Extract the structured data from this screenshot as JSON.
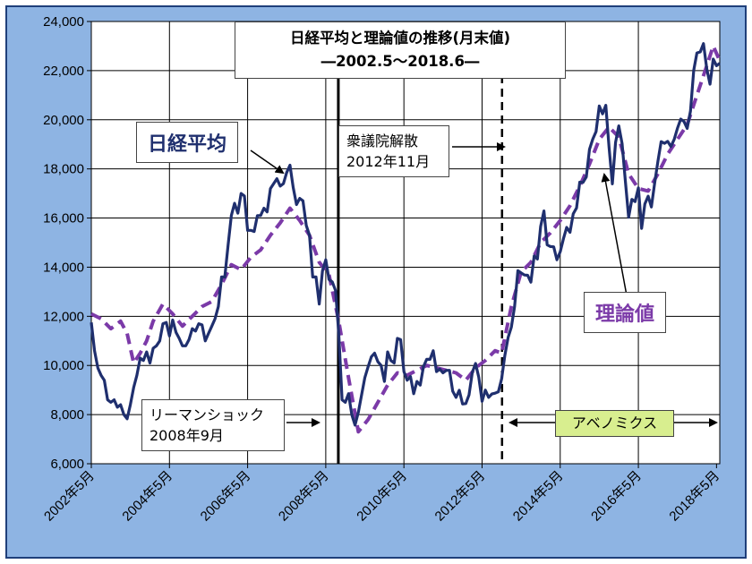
{
  "chart_data": {
    "type": "line",
    "title": "日経平均と理論値の推移(月末値)",
    "subtitle": "―2002.5～2018.6―",
    "ylim": [
      6000,
      24000
    ],
    "y_ticks": [
      "6,000",
      "8,000",
      "10,000",
      "12,000",
      "14,000",
      "16,000",
      "18,000",
      "20,000",
      "22,000",
      "24,000"
    ],
    "x_range": [
      "2002-05",
      "2018-06"
    ],
    "x_ticks": [
      "2002年5月",
      "2004年5月",
      "2006年5月",
      "2008年5月",
      "2010年5月",
      "2012年5月",
      "2014年5月",
      "2016年5月",
      "2018年5月"
    ],
    "grid": true,
    "series": [
      {
        "name": "日経平均",
        "color": "#1f2f6e",
        "style": "solid",
        "points": [
          [
            "2002-05",
            11750
          ],
          [
            "2002-06",
            10600
          ],
          [
            "2002-07",
            9900
          ],
          [
            "2002-08",
            9600
          ],
          [
            "2002-09",
            9400
          ],
          [
            "2002-10",
            8600
          ],
          [
            "2002-11",
            8500
          ],
          [
            "2002-12",
            8600
          ],
          [
            "2003-01",
            8300
          ],
          [
            "2003-02",
            8400
          ],
          [
            "2003-03",
            8000
          ],
          [
            "2003-04",
            7830
          ],
          [
            "2003-05",
            8400
          ],
          [
            "2003-06",
            9100
          ],
          [
            "2003-07",
            9600
          ],
          [
            "2003-08",
            10300
          ],
          [
            "2003-09",
            10200
          ],
          [
            "2003-10",
            10550
          ],
          [
            "2003-11",
            10100
          ],
          [
            "2003-12",
            10700
          ],
          [
            "2004-01",
            10800
          ],
          [
            "2004-02",
            11000
          ],
          [
            "2004-03",
            11700
          ],
          [
            "2004-04",
            11750
          ],
          [
            "2004-05",
            11200
          ],
          [
            "2004-06",
            11850
          ],
          [
            "2004-07",
            11350
          ],
          [
            "2004-08",
            11100
          ],
          [
            "2004-09",
            10800
          ],
          [
            "2004-10",
            10800
          ],
          [
            "2004-11",
            11050
          ],
          [
            "2004-12",
            11500
          ],
          [
            "2005-01",
            11400
          ],
          [
            "2005-02",
            11700
          ],
          [
            "2005-03",
            11650
          ],
          [
            "2005-04",
            11000
          ],
          [
            "2005-05",
            11300
          ],
          [
            "2005-06",
            11600
          ],
          [
            "2005-07",
            11900
          ],
          [
            "2005-08",
            12400
          ],
          [
            "2005-09",
            13600
          ],
          [
            "2005-10",
            13600
          ],
          [
            "2005-11",
            14900
          ],
          [
            "2005-12",
            16100
          ],
          [
            "2006-01",
            16600
          ],
          [
            "2006-02",
            16200
          ],
          [
            "2006-03",
            17000
          ],
          [
            "2006-04",
            16900
          ],
          [
            "2006-05",
            15500
          ],
          [
            "2006-06",
            15500
          ],
          [
            "2006-07",
            15450
          ],
          [
            "2006-08",
            16100
          ],
          [
            "2006-09",
            16100
          ],
          [
            "2006-10",
            16400
          ],
          [
            "2006-11",
            16250
          ],
          [
            "2006-12",
            17200
          ],
          [
            "2007-01",
            17400
          ],
          [
            "2007-02",
            17600
          ],
          [
            "2007-03",
            17300
          ],
          [
            "2007-04",
            17400
          ],
          [
            "2007-05",
            17850
          ],
          [
            "2007-06",
            18150
          ],
          [
            "2007-07",
            17250
          ],
          [
            "2007-08",
            16550
          ],
          [
            "2007-09",
            16800
          ],
          [
            "2007-10",
            16700
          ],
          [
            "2007-11",
            15700
          ],
          [
            "2007-12",
            15300
          ],
          [
            "2008-01",
            13600
          ],
          [
            "2008-02",
            13600
          ],
          [
            "2008-03",
            12500
          ],
          [
            "2008-04",
            13850
          ],
          [
            "2008-05",
            14300
          ],
          [
            "2008-06",
            13500
          ],
          [
            "2008-07",
            13400
          ],
          [
            "2008-08",
            13050
          ],
          [
            "2008-09",
            11300
          ],
          [
            "2008-10",
            8600
          ],
          [
            "2008-11",
            8500
          ],
          [
            "2008-12",
            8850
          ],
          [
            "2009-01",
            7990
          ],
          [
            "2009-02",
            7570
          ],
          [
            "2009-03",
            8100
          ],
          [
            "2009-04",
            8800
          ],
          [
            "2009-05",
            9500
          ],
          [
            "2009-06",
            9950
          ],
          [
            "2009-07",
            10350
          ],
          [
            "2009-08",
            10500
          ],
          [
            "2009-09",
            10150
          ],
          [
            "2009-10",
            10000
          ],
          [
            "2009-11",
            9350
          ],
          [
            "2009-12",
            10550
          ],
          [
            "2010-01",
            10200
          ],
          [
            "2010-02",
            10100
          ],
          [
            "2010-03",
            11100
          ],
          [
            "2010-04",
            11050
          ],
          [
            "2010-05",
            9750
          ],
          [
            "2010-06",
            9400
          ],
          [
            "2010-07",
            9550
          ],
          [
            "2010-08",
            8850
          ],
          [
            "2010-09",
            9350
          ],
          [
            "2010-10",
            9200
          ],
          [
            "2010-11",
            9950
          ],
          [
            "2010-12",
            10250
          ],
          [
            "2011-01",
            10250
          ],
          [
            "2011-02",
            10600
          ],
          [
            "2011-03",
            9750
          ],
          [
            "2011-04",
            9850
          ],
          [
            "2011-05",
            9700
          ],
          [
            "2011-06",
            9800
          ],
          [
            "2011-07",
            9800
          ],
          [
            "2011-08",
            8950
          ],
          [
            "2011-09",
            8700
          ],
          [
            "2011-10",
            8990
          ],
          [
            "2011-11",
            8430
          ],
          [
            "2011-12",
            8450
          ],
          [
            "2012-01",
            8800
          ],
          [
            "2012-02",
            9720
          ],
          [
            "2012-03",
            10080
          ],
          [
            "2012-04",
            9520
          ],
          [
            "2012-05",
            8540
          ],
          [
            "2012-06",
            9000
          ],
          [
            "2012-07",
            8700
          ],
          [
            "2012-08",
            8840
          ],
          [
            "2012-09",
            8870
          ],
          [
            "2012-10",
            8930
          ],
          [
            "2012-11",
            9450
          ],
          [
            "2012-12",
            10400
          ],
          [
            "2013-01",
            11140
          ],
          [
            "2013-02",
            11560
          ],
          [
            "2013-03",
            12400
          ],
          [
            "2013-04",
            13860
          ],
          [
            "2013-05",
            13770
          ],
          [
            "2013-06",
            13680
          ],
          [
            "2013-07",
            13670
          ],
          [
            "2013-08",
            13390
          ],
          [
            "2013-09",
            14460
          ],
          [
            "2013-10",
            14330
          ],
          [
            "2013-11",
            15660
          ],
          [
            "2013-12",
            16290
          ],
          [
            "2014-01",
            14910
          ],
          [
            "2014-02",
            14840
          ],
          [
            "2014-03",
            14830
          ],
          [
            "2014-04",
            14300
          ],
          [
            "2014-05",
            14630
          ],
          [
            "2014-06",
            15160
          ],
          [
            "2014-07",
            15620
          ],
          [
            "2014-08",
            15420
          ],
          [
            "2014-09",
            16170
          ],
          [
            "2014-10",
            16410
          ],
          [
            "2014-11",
            17460
          ],
          [
            "2014-12",
            17450
          ],
          [
            "2015-01",
            17670
          ],
          [
            "2015-02",
            18800
          ],
          [
            "2015-03",
            19210
          ],
          [
            "2015-04",
            19520
          ],
          [
            "2015-05",
            20560
          ],
          [
            "2015-06",
            20240
          ],
          [
            "2015-07",
            20590
          ],
          [
            "2015-08",
            18890
          ],
          [
            "2015-09",
            17390
          ],
          [
            "2015-10",
            19080
          ],
          [
            "2015-11",
            19750
          ],
          [
            "2015-12",
            19030
          ],
          [
            "2016-01",
            17520
          ],
          [
            "2016-02",
            16030
          ],
          [
            "2016-03",
            16760
          ],
          [
            "2016-04",
            16670
          ],
          [
            "2016-05",
            17230
          ],
          [
            "2016-06",
            15580
          ],
          [
            "2016-07",
            16570
          ],
          [
            "2016-08",
            16890
          ],
          [
            "2016-09",
            16450
          ],
          [
            "2016-10",
            17430
          ],
          [
            "2016-11",
            18310
          ],
          [
            "2016-12",
            19110
          ],
          [
            "2017-01",
            19040
          ],
          [
            "2017-02",
            19120
          ],
          [
            "2017-03",
            18910
          ],
          [
            "2017-04",
            19200
          ],
          [
            "2017-05",
            19650
          ],
          [
            "2017-06",
            20030
          ],
          [
            "2017-07",
            19930
          ],
          [
            "2017-08",
            19650
          ],
          [
            "2017-09",
            20360
          ],
          [
            "2017-10",
            22010
          ],
          [
            "2017-11",
            22720
          ],
          [
            "2017-12",
            22760
          ],
          [
            "2018-01",
            23100
          ],
          [
            "2018-02",
            22070
          ],
          [
            "2018-03",
            21450
          ],
          [
            "2018-04",
            22470
          ],
          [
            "2018-05",
            22200
          ],
          [
            "2018-06",
            22300
          ]
        ]
      },
      {
        "name": "理論値",
        "color": "#7b3aa8",
        "style": "dashed",
        "points": [
          [
            "2002-05",
            12100
          ],
          [
            "2002-08",
            11900
          ],
          [
            "2002-11",
            11500
          ],
          [
            "2003-02",
            11800
          ],
          [
            "2003-04",
            11300
          ],
          [
            "2003-06",
            10100
          ],
          [
            "2003-08",
            10500
          ],
          [
            "2003-10",
            11000
          ],
          [
            "2003-12",
            11800
          ],
          [
            "2004-03",
            12500
          ],
          [
            "2004-06",
            12100
          ],
          [
            "2004-09",
            11600
          ],
          [
            "2004-12",
            12000
          ],
          [
            "2005-03",
            12400
          ],
          [
            "2005-06",
            12600
          ],
          [
            "2005-09",
            13300
          ],
          [
            "2005-12",
            14100
          ],
          [
            "2006-03",
            13900
          ],
          [
            "2006-06",
            14400
          ],
          [
            "2006-09",
            14700
          ],
          [
            "2006-12",
            15300
          ],
          [
            "2007-03",
            15800
          ],
          [
            "2007-06",
            16400
          ],
          [
            "2007-09",
            15900
          ],
          [
            "2007-12",
            15300
          ],
          [
            "2008-03",
            14200
          ],
          [
            "2008-06",
            13700
          ],
          [
            "2008-09",
            11800
          ],
          [
            "2008-12",
            9500
          ],
          [
            "2009-03",
            7300
          ],
          [
            "2009-06",
            7800
          ],
          [
            "2009-09",
            8500
          ],
          [
            "2009-12",
            9200
          ],
          [
            "2010-03",
            9700
          ],
          [
            "2010-06",
            9600
          ],
          [
            "2010-09",
            9800
          ],
          [
            "2010-12",
            10000
          ],
          [
            "2011-03",
            9900
          ],
          [
            "2011-06",
            9800
          ],
          [
            "2011-09",
            9700
          ],
          [
            "2011-12",
            9400
          ],
          [
            "2012-03",
            9900
          ],
          [
            "2012-06",
            10200
          ],
          [
            "2012-09",
            10600
          ],
          [
            "2012-11",
            10500
          ],
          [
            "2013-02",
            12400
          ],
          [
            "2013-05",
            13800
          ],
          [
            "2013-08",
            14200
          ],
          [
            "2013-11",
            15000
          ],
          [
            "2014-02",
            15400
          ],
          [
            "2014-05",
            15900
          ],
          [
            "2014-08",
            16500
          ],
          [
            "2014-11",
            17300
          ],
          [
            "2015-02",
            18200
          ],
          [
            "2015-05",
            19200
          ],
          [
            "2015-08",
            19700
          ],
          [
            "2015-11",
            19300
          ],
          [
            "2016-02",
            17800
          ],
          [
            "2016-05",
            17200
          ],
          [
            "2016-08",
            17100
          ],
          [
            "2016-11",
            17800
          ],
          [
            "2017-02",
            18600
          ],
          [
            "2017-05",
            19200
          ],
          [
            "2017-08",
            19800
          ],
          [
            "2017-11",
            21000
          ],
          [
            "2018-02",
            22200
          ],
          [
            "2018-04",
            23000
          ],
          [
            "2018-06",
            22400
          ]
        ]
      }
    ],
    "annotations": {
      "lehman": {
        "date": "2008-09",
        "lines": [
          "リーマンショック",
          "2008年9月"
        ]
      },
      "election": {
        "date": "2012-11",
        "lines": [
          "衆議院解散",
          "2012年11月"
        ]
      },
      "abenomics": "アベノミクス",
      "nikkei_label": "日経平均",
      "theory_label": "理論値"
    }
  }
}
